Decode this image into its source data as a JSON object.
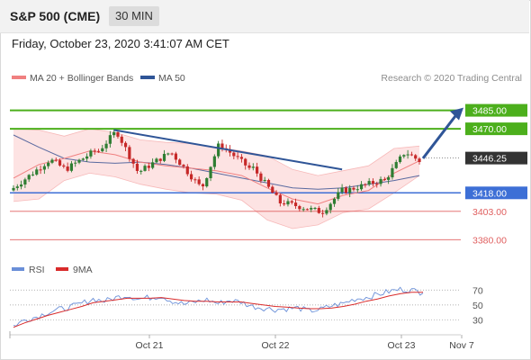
{
  "header": {
    "symbol": "S&P 500 (CME)",
    "interval": "30 MIN",
    "datetime": "Friday, October 23, 2020 3:41:07 AM CET"
  },
  "colors": {
    "bullish": "#2e7d32",
    "bearish": "#c62828",
    "ma20": "#f08080",
    "bollinger_fill": "#fde0e0",
    "ma50": "#5a6aa0",
    "trendline": "#2f5597",
    "resistance": "#4caf1c",
    "support_blue": "#3d6fd6",
    "support_red": "#e06060",
    "rsi": "#6a8fd8",
    "rsi_ma": "#d92b2b",
    "current_price_box": "#333333"
  },
  "chart_data": [
    {
      "type": "candlestick",
      "title": "",
      "legend": [
        {
          "name": "MA 20 + Bollinger Bands",
          "color": "#f08080"
        },
        {
          "name": "MA 50",
          "color": "#2f5597"
        }
      ],
      "watermark": "Research © 2020 Trading Central",
      "x_ticks": [
        "Oct 21",
        "Oct 22",
        "Oct 23",
        "Nov 7"
      ],
      "ylim": [
        3370,
        3492
      ],
      "current_price": {
        "value": 3446.25,
        "label": "3446.25"
      },
      "levels": [
        {
          "value": 3485.0,
          "label": "3485.00",
          "kind": "resistance"
        },
        {
          "value": 3470.0,
          "label": "3470.00",
          "kind": "resistance"
        },
        {
          "value": 3418.0,
          "label": "3418.00",
          "kind": "pivot"
        },
        {
          "value": 3403.0,
          "label": "3403.00",
          "kind": "support"
        },
        {
          "value": 3380.0,
          "label": "3380.00",
          "kind": "support"
        }
      ],
      "trendline": {
        "from": {
          "bar": 26,
          "price": 3469
        },
        "to": {
          "bar": 85,
          "price": 3437
        }
      },
      "projection_arrow": {
        "from_price": 3446,
        "to_price": 3485
      },
      "price_segments": [
        {
          "bars": 10,
          "start": 3422,
          "end": 3444
        },
        {
          "bars": 4,
          "start": 3444,
          "end": 3438
        },
        {
          "bars": 8,
          "start": 3438,
          "end": 3452
        },
        {
          "bars": 5,
          "start": 3452,
          "end": 3466
        },
        {
          "bars": 6,
          "start": 3466,
          "end": 3436
        },
        {
          "bars": 8,
          "start": 3436,
          "end": 3450
        },
        {
          "bars": 8,
          "start": 3450,
          "end": 3424
        },
        {
          "bars": 5,
          "start": 3424,
          "end": 3456
        },
        {
          "bars": 8,
          "start": 3456,
          "end": 3438
        },
        {
          "bars": 8,
          "start": 3438,
          "end": 3410
        },
        {
          "bars": 10,
          "start": 3410,
          "end": 3403
        },
        {
          "bars": 6,
          "start": 3403,
          "end": 3420
        },
        {
          "bars": 10,
          "start": 3420,
          "end": 3428
        },
        {
          "bars": 6,
          "start": 3428,
          "end": 3450
        },
        {
          "bars": 4,
          "start": 3450,
          "end": 3444
        }
      ],
      "ma20": [
        3430,
        3441,
        3446,
        3452,
        3449,
        3443,
        3440,
        3438,
        3436,
        3432,
        3422,
        3413,
        3409,
        3416,
        3420,
        3434,
        3444
      ],
      "ma50": [
        3465,
        3455,
        3446,
        3443,
        3442,
        3443,
        3441,
        3438,
        3434,
        3430,
        3426,
        3422,
        3421,
        3422,
        3425,
        3428,
        3432
      ],
      "bb_upper": [
        3470,
        3469,
        3464,
        3470,
        3467,
        3461,
        3459,
        3458,
        3455,
        3452,
        3448,
        3437,
        3432,
        3436,
        3440,
        3454,
        3456
      ],
      "bb_lower": [
        3411,
        3413,
        3428,
        3434,
        3431,
        3425,
        3421,
        3418,
        3417,
        3412,
        3396,
        3389,
        3392,
        3402,
        3405,
        3418,
        3432
      ]
    },
    {
      "type": "line",
      "title": "",
      "legend": [
        {
          "name": "RSI",
          "color": "#6a8fd8"
        },
        {
          "name": "9MA",
          "color": "#d92b2b"
        }
      ],
      "ylim": [
        10,
        80
      ],
      "ticks": [
        70,
        50,
        30
      ],
      "series": [
        {
          "name": "RSI",
          "values": [
            22,
            30,
            34,
            40,
            44,
            47,
            52,
            58,
            55,
            60,
            63,
            58,
            60,
            62,
            55,
            51,
            54,
            57,
            52,
            56,
            54,
            48,
            46,
            44,
            45,
            46,
            42,
            44,
            49,
            52,
            58,
            60,
            64,
            68,
            71,
            70,
            66
          ]
        },
        {
          "name": "9MA",
          "values": [
            20,
            26,
            31,
            36,
            40,
            44,
            48,
            53,
            55,
            57,
            59,
            59,
            59,
            60,
            58,
            56,
            55,
            55,
            54,
            54,
            54,
            52,
            50,
            48,
            47,
            46,
            45,
            45,
            46,
            48,
            51,
            55,
            58,
            62,
            65,
            67,
            67
          ]
        }
      ]
    }
  ]
}
